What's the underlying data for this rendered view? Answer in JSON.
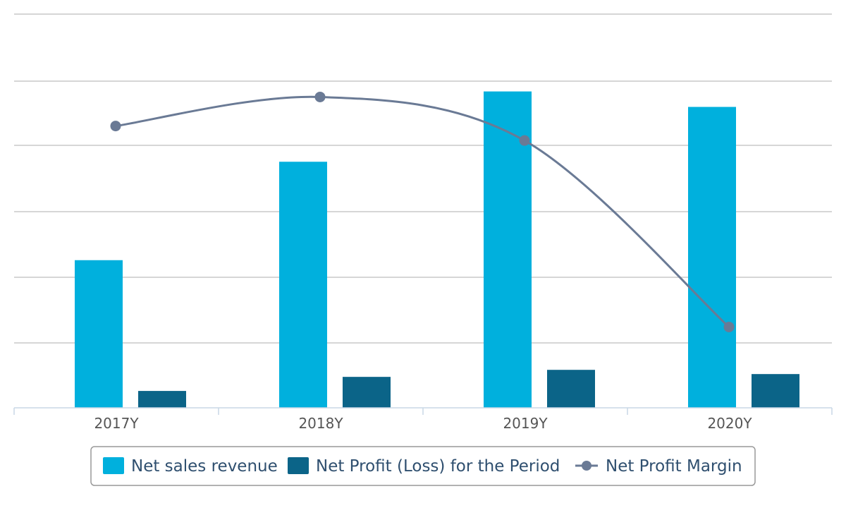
{
  "chart_data": {
    "type": "bar",
    "title": "",
    "xlabel": "",
    "ylabel": "",
    "grid": true,
    "categories": [
      "2017Y",
      "2018Y",
      "2019Y",
      "2020Y"
    ],
    "series": [
      {
        "name": "Net sales revenue",
        "kind": "bar",
        "color": "#00b0dd",
        "values": [
          210,
          350,
          450,
          428
        ]
      },
      {
        "name": "Net Profit (Loss) for the Period",
        "kind": "bar",
        "color": "#0b6488",
        "values": [
          24,
          44,
          54,
          48
        ]
      },
      {
        "name": "Net Profit Margin",
        "kind": "line",
        "color": "#6a7a95",
        "values": [
          0.116,
          0.13,
          0.109,
          0.019
        ]
      }
    ],
    "ylim_bars": [
      0,
      560
    ],
    "ylim_line": [
      -0.02,
      0.17
    ],
    "legend_position": "bottom-center"
  }
}
